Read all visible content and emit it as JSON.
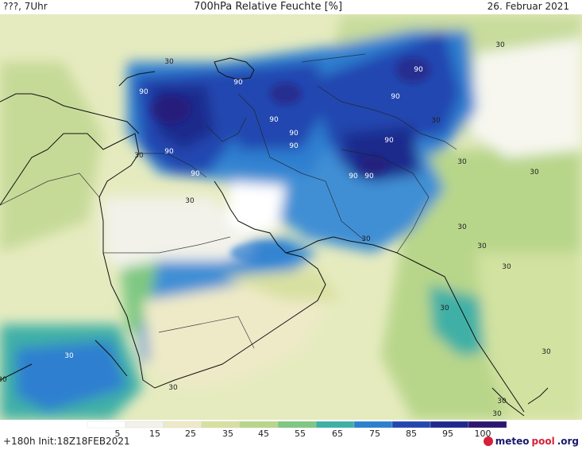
{
  "header": {
    "left": "???, 7Uhr",
    "title": "700hPa Relative Feuchte [%]",
    "date": "26. Februar 2021"
  },
  "map": {
    "contour_labels": [
      "30",
      "90",
      "90",
      "90",
      "90",
      "90",
      "90",
      "90",
      "90",
      "90",
      "90",
      "90",
      "90",
      "30",
      "30",
      "30",
      "30",
      "30",
      "30",
      "30",
      "30",
      "30",
      "30",
      "30",
      "30",
      "30",
      "30",
      "30",
      "30",
      "30"
    ]
  },
  "colorbar": {
    "ticks": [
      "5",
      "15",
      "25",
      "35",
      "45",
      "55",
      "65",
      "75",
      "85",
      "95",
      "100"
    ],
    "colors": [
      "#ffffff",
      "#f2f2ea",
      "#eeeac8",
      "#d8e0a0",
      "#b8d68a",
      "#7ec882",
      "#3fb0a6",
      "#2d7fd0",
      "#2446b0",
      "#1f2a8c",
      "#2b1670"
    ]
  },
  "footer": {
    "run": "+180h Init:18Z18FEB2021"
  },
  "logo": {
    "part1": "meteo",
    "part2": "pool",
    "part3": ".org"
  }
}
